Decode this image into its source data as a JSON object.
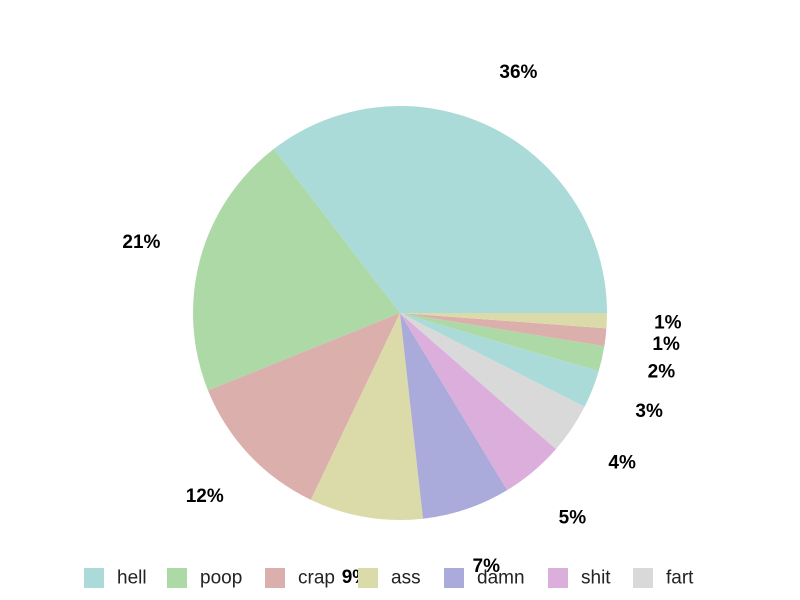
{
  "chart_data": {
    "type": "pie",
    "title": "",
    "start_angle_deg": 0,
    "direction": "counterclockwise",
    "legend_placement": "bottom",
    "legend": [
      {
        "label": "hell",
        "color": "#aadbd9"
      },
      {
        "label": "poop",
        "color": "#add9a7"
      },
      {
        "label": "crap",
        "color": "#dbafab"
      },
      {
        "label": "ass",
        "color": "#dbdba9"
      },
      {
        "label": "damn",
        "color": "#aaaadb"
      },
      {
        "label": "shit",
        "color": "#dbaedb"
      },
      {
        "label": "fart",
        "color": "#d9d9d9"
      }
    ],
    "slices": [
      {
        "value": 36,
        "label": "36%",
        "color": "#aadbd9"
      },
      {
        "value": 21,
        "label": "21%",
        "color": "#add9a7"
      },
      {
        "value": 12,
        "label": "12%",
        "color": "#dbafab"
      },
      {
        "value": 9,
        "label": "9%",
        "color": "#dbdba9"
      },
      {
        "value": 7,
        "label": "7%",
        "color": "#aaaadb"
      },
      {
        "value": 5,
        "label": "5%",
        "color": "#dbaedb"
      },
      {
        "value": 4,
        "label": "4%",
        "color": "#d9d9d9"
      },
      {
        "value": 3,
        "label": "3%",
        "color": "#aadbd9"
      },
      {
        "value": 2,
        "label": "2%",
        "color": "#add9a7"
      },
      {
        "value": 1.4,
        "label": "1%",
        "color": "#dbafab"
      },
      {
        "value": 1.2,
        "label": "1%",
        "color": "#dbdba9"
      }
    ]
  }
}
